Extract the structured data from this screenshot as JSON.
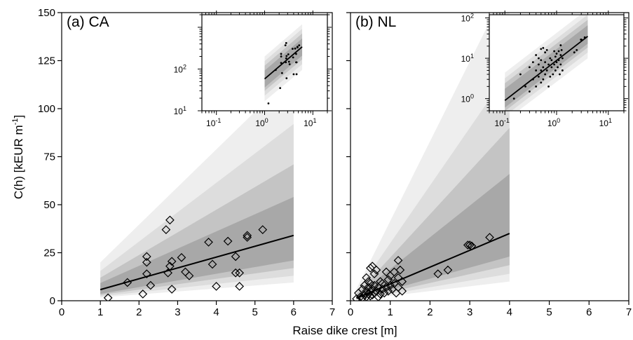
{
  "figure": {
    "ylabel": "C(h) [kEUR m",
    "ylabel_sup": "-1",
    "ylabel_close": "]",
    "xlabel": "Raise dike crest [m]"
  },
  "colors": {
    "band_outer": "#eeeeee",
    "band_2": "#dddddd",
    "band_3": "#c4c4c4",
    "band_inner": "#a8a8a8",
    "fit_line": "#000000"
  },
  "chart_data": [
    {
      "type": "scatter",
      "title": "(a) CA",
      "xlim": [
        0,
        7
      ],
      "ylim": [
        0,
        150
      ],
      "x_ticks": [
        0,
        1,
        2,
        3,
        4,
        5,
        6,
        7
      ],
      "y_ticks": [
        0,
        25,
        50,
        75,
        100,
        125,
        150
      ],
      "x_tick_labels": [
        "0",
        "1",
        "2",
        "3",
        "4",
        "5",
        "6",
        "7"
      ],
      "y_tick_labels": [
        "0",
        "25",
        "50",
        "75",
        "100",
        "125",
        "150"
      ],
      "marker": "diamond",
      "points": [
        [
          1.2,
          1.5
        ],
        [
          1.7,
          9.5
        ],
        [
          2.1,
          3.5
        ],
        [
          2.2,
          23
        ],
        [
          2.2,
          20
        ],
        [
          2.2,
          14
        ],
        [
          2.3,
          8
        ],
        [
          2.7,
          37
        ],
        [
          2.75,
          14.5
        ],
        [
          2.8,
          18
        ],
        [
          2.8,
          42
        ],
        [
          2.85,
          20.5
        ],
        [
          2.85,
          6
        ],
        [
          3.1,
          22.5
        ],
        [
          3.2,
          15
        ],
        [
          3.3,
          13
        ],
        [
          3.8,
          30.5
        ],
        [
          3.9,
          19
        ],
        [
          4.0,
          7.5
        ],
        [
          4.3,
          31
        ],
        [
          4.5,
          23
        ],
        [
          4.5,
          14.5
        ],
        [
          4.6,
          14.5
        ],
        [
          4.6,
          7.5
        ],
        [
          4.8,
          34
        ],
        [
          4.8,
          33
        ],
        [
          5.2,
          37
        ]
      ],
      "fit_line": {
        "x": [
          1,
          6
        ],
        "y": [
          5.8,
          34
        ]
      },
      "bands": [
        {
          "x": [
            1,
            6
          ],
          "lower": [
            1.7,
            9.5
          ],
          "upper": [
            20,
            118
          ]
        },
        {
          "x": [
            1,
            6
          ],
          "lower": [
            2.3,
            13
          ],
          "upper": [
            15.5,
            92
          ]
        },
        {
          "x": [
            1,
            6
          ],
          "lower": [
            3.0,
            17
          ],
          "upper": [
            12,
            71
          ]
        },
        {
          "x": [
            1,
            6
          ],
          "lower": [
            3.6,
            21
          ],
          "upper": [
            9.2,
            54
          ]
        }
      ],
      "inset": {
        "scale": "log-log",
        "xlim": [
          0.05,
          20
        ],
        "ylim": [
          1,
          200
        ],
        "x_tick_labels": [
          "10",
          "10",
          "10"
        ],
        "x_tick_exponents": [
          "-1",
          "0",
          "1"
        ],
        "y_tick_labels": [
          "10",
          "10"
        ],
        "y_tick_exponents": [
          "1",
          "2"
        ],
        "points": [
          [
            1.2,
            1.5
          ],
          [
            1.7,
            9.5
          ],
          [
            2.1,
            3.5
          ],
          [
            2.2,
            23
          ],
          [
            2.2,
            20
          ],
          [
            2.2,
            14
          ],
          [
            2.3,
            8
          ],
          [
            2.7,
            37
          ],
          [
            2.75,
            14.5
          ],
          [
            2.8,
            18
          ],
          [
            2.8,
            42
          ],
          [
            2.85,
            20.5
          ],
          [
            2.85,
            6
          ],
          [
            3.1,
            22.5
          ],
          [
            3.2,
            15
          ],
          [
            3.3,
            13
          ],
          [
            3.8,
            30.5
          ],
          [
            3.9,
            19
          ],
          [
            4.0,
            7.5
          ],
          [
            4.3,
            31
          ],
          [
            4.5,
            23
          ],
          [
            4.5,
            14.5
          ],
          [
            4.6,
            14.5
          ],
          [
            4.6,
            7.5
          ],
          [
            4.8,
            34
          ],
          [
            4.8,
            33
          ],
          [
            5.2,
            37
          ]
        ],
        "fit_line": {
          "x": [
            1,
            6
          ],
          "y": [
            5.8,
            34
          ]
        },
        "bands": [
          {
            "x": [
              1,
              6
            ],
            "lower": [
              1.7,
              9.5
            ],
            "upper": [
              20,
              118
            ]
          },
          {
            "x": [
              1,
              6
            ],
            "lower": [
              2.3,
              13
            ],
            "upper": [
              15.5,
              92
            ]
          },
          {
            "x": [
              1,
              6
            ],
            "lower": [
              3.0,
              17
            ],
            "upper": [
              12,
              71
            ]
          },
          {
            "x": [
              1,
              6
            ],
            "lower": [
              3.6,
              21
            ],
            "upper": [
              9.2,
              54
            ]
          }
        ]
      }
    },
    {
      "type": "scatter",
      "title": "(b) NL",
      "xlim": [
        0,
        7
      ],
      "ylim": [
        0,
        150
      ],
      "x_ticks": [
        0,
        1,
        2,
        3,
        4,
        5,
        6,
        7
      ],
      "y_ticks": [
        0,
        25,
        50,
        75,
        100,
        125,
        150
      ],
      "x_tick_labels": [
        "0",
        "1",
        "2",
        "3",
        "4",
        "5",
        "6",
        "7"
      ],
      "y_tick_labels": [],
      "marker": "diamond",
      "points": [
        [
          0.15,
          1
        ],
        [
          0.2,
          4
        ],
        [
          0.25,
          2
        ],
        [
          0.3,
          6
        ],
        [
          0.3,
          1.5
        ],
        [
          0.35,
          3
        ],
        [
          0.35,
          8
        ],
        [
          0.4,
          5
        ],
        [
          0.4,
          2
        ],
        [
          0.4,
          12
        ],
        [
          0.45,
          7
        ],
        [
          0.45,
          3.5
        ],
        [
          0.45,
          10
        ],
        [
          0.5,
          17
        ],
        [
          0.5,
          5
        ],
        [
          0.5,
          2.5
        ],
        [
          0.5,
          9
        ],
        [
          0.55,
          18
        ],
        [
          0.55,
          6
        ],
        [
          0.55,
          3
        ],
        [
          0.6,
          14
        ],
        [
          0.6,
          8
        ],
        [
          0.6,
          4
        ],
        [
          0.65,
          16
        ],
        [
          0.65,
          5
        ],
        [
          0.7,
          2
        ],
        [
          0.7,
          7
        ],
        [
          0.75,
          10
        ],
        [
          0.75,
          3.5
        ],
        [
          0.8,
          6
        ],
        [
          0.8,
          9
        ],
        [
          0.85,
          4
        ],
        [
          0.9,
          15
        ],
        [
          0.9,
          7
        ],
        [
          0.95,
          11
        ],
        [
          0.95,
          5
        ],
        [
          1.0,
          8
        ],
        [
          1.0,
          13
        ],
        [
          1.05,
          6
        ],
        [
          1.1,
          15
        ],
        [
          1.1,
          9
        ],
        [
          1.15,
          4
        ],
        [
          1.2,
          21
        ],
        [
          1.2,
          12
        ],
        [
          1.2,
          7
        ],
        [
          1.25,
          16
        ],
        [
          1.3,
          10
        ],
        [
          1.3,
          5
        ],
        [
          2.2,
          14
        ],
        [
          2.45,
          16
        ],
        [
          2.95,
          29
        ],
        [
          3.0,
          29
        ],
        [
          3.05,
          28.5
        ],
        [
          3.5,
          33
        ]
      ],
      "fit_line": {
        "x": [
          0.15,
          4
        ],
        "y": [
          1.3,
          35
        ]
      },
      "bands": [
        {
          "x": [
            0.15,
            4
          ],
          "lower": [
            0.4,
            10
          ],
          "upper": [
            6.2,
            166
          ]
        },
        {
          "x": [
            0.15,
            4
          ],
          "lower": [
            0.53,
            14
          ],
          "upper": [
            4.5,
            120
          ]
        },
        {
          "x": [
            0.15,
            4
          ],
          "lower": [
            0.7,
            18.5
          ],
          "upper": [
            3.4,
            90
          ]
        },
        {
          "x": [
            0.15,
            4
          ],
          "lower": [
            0.86,
            23
          ],
          "upper": [
            2.5,
            66
          ]
        }
      ],
      "inset": {
        "scale": "log-log",
        "xlim": [
          0.05,
          20
        ],
        "ylim": [
          0.5,
          120
        ],
        "x_tick_labels": [
          "10",
          "10",
          "10"
        ],
        "x_tick_exponents": [
          "-1",
          "0",
          "1"
        ],
        "y_tick_labels": [
          "10",
          "10",
          "10"
        ],
        "y_tick_exponents": [
          "0",
          "1",
          "2"
        ],
        "points": [
          [
            0.15,
            1
          ],
          [
            0.2,
            4
          ],
          [
            0.25,
            2
          ],
          [
            0.3,
            6
          ],
          [
            0.3,
            1.5
          ],
          [
            0.35,
            3
          ],
          [
            0.35,
            8
          ],
          [
            0.4,
            5
          ],
          [
            0.4,
            2
          ],
          [
            0.4,
            12
          ],
          [
            0.45,
            7
          ],
          [
            0.45,
            3.5
          ],
          [
            0.45,
            10
          ],
          [
            0.5,
            17
          ],
          [
            0.5,
            5
          ],
          [
            0.5,
            2.5
          ],
          [
            0.5,
            9
          ],
          [
            0.55,
            18
          ],
          [
            0.55,
            6
          ],
          [
            0.55,
            3
          ],
          [
            0.6,
            14
          ],
          [
            0.6,
            8
          ],
          [
            0.6,
            4
          ],
          [
            0.65,
            16
          ],
          [
            0.65,
            5
          ],
          [
            0.7,
            2
          ],
          [
            0.7,
            7
          ],
          [
            0.75,
            10
          ],
          [
            0.75,
            3.5
          ],
          [
            0.8,
            6
          ],
          [
            0.8,
            9
          ],
          [
            0.85,
            4
          ],
          [
            0.9,
            15
          ],
          [
            0.9,
            7
          ],
          [
            0.95,
            11
          ],
          [
            0.95,
            5
          ],
          [
            1.0,
            8
          ],
          [
            1.0,
            13
          ],
          [
            1.05,
            6
          ],
          [
            1.1,
            15
          ],
          [
            1.1,
            9
          ],
          [
            1.15,
            4
          ],
          [
            1.2,
            21
          ],
          [
            1.2,
            12
          ],
          [
            1.2,
            7
          ],
          [
            1.25,
            16
          ],
          [
            1.3,
            10
          ],
          [
            1.3,
            5
          ],
          [
            2.2,
            14
          ],
          [
            2.45,
            16
          ],
          [
            2.95,
            29
          ],
          [
            3.0,
            29
          ],
          [
            3.05,
            28.5
          ],
          [
            3.5,
            33
          ]
        ],
        "fit_line": {
          "x": [
            0.1,
            4
          ],
          "y": [
            0.9,
            35
          ]
        },
        "bands": [
          {
            "x": [
              0.1,
              4
            ],
            "lower": [
              0.28,
              10
            ],
            "upper": [
              4.4,
              166
            ]
          },
          {
            "x": [
              0.1,
              4
            ],
            "lower": [
              0.37,
              14
            ],
            "upper": [
              3.2,
              120
            ]
          },
          {
            "x": [
              0.1,
              4
            ],
            "lower": [
              0.49,
              18.5
            ],
            "upper": [
              2.4,
              90
            ]
          },
          {
            "x": [
              0.1,
              4
            ],
            "lower": [
              0.6,
              23
            ],
            "upper": [
              1.75,
              66
            ]
          }
        ]
      }
    }
  ]
}
